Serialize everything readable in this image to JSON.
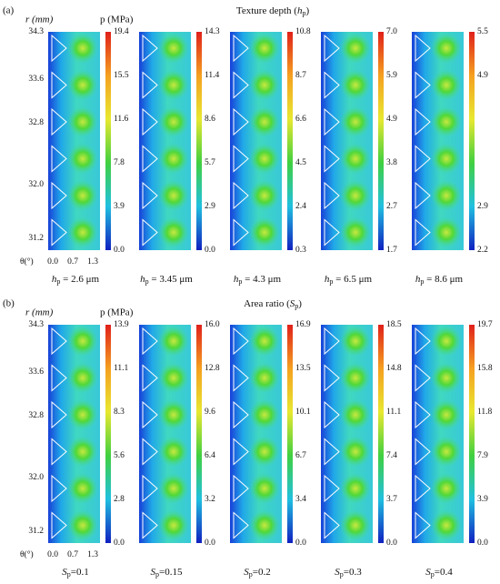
{
  "panels": [
    {
      "label": "(a)",
      "title": {
        "text": "Texture depth (",
        "symbol": "h",
        "sub": "p",
        "end": ")"
      },
      "r_label": "r (mm)",
      "p_label": "p (MPa)",
      "r_ticks": [
        "34.3",
        "33.6",
        "32.8",
        "32.0",
        "31.2"
      ],
      "theta_label": "θ(°)",
      "theta_ticks": [
        "0.0",
        "0.7",
        "1.3"
      ],
      "plots": [
        {
          "caption": {
            "symbol": "h",
            "sub": "p",
            "text": " = 2.6 μm"
          },
          "colorbar": [
            "19.4",
            "15.5",
            "11.6",
            "7.8",
            "3.9",
            "0.0"
          ]
        },
        {
          "caption": {
            "symbol": "h",
            "sub": "p",
            "text": " = 3.45 μm"
          },
          "colorbar": [
            "14.3",
            "11.4",
            "8.6",
            "5.7",
            "2.9",
            "0.0"
          ]
        },
        {
          "caption": {
            "symbol": "h",
            "sub": "p",
            "text": " = 4.3 μm"
          },
          "colorbar": [
            "10.8",
            "8.7",
            "6.6",
            "4.5",
            "2.4",
            "0.3"
          ]
        },
        {
          "caption": {
            "symbol": "h",
            "sub": "p",
            "text": " = 6.5 μm"
          },
          "colorbar": [
            "7.0",
            "5.9",
            "4.9",
            "3.8",
            "2.7",
            "1.7"
          ]
        },
        {
          "caption": {
            "symbol": "h",
            "sub": "p",
            "text": " = 8.6 μm"
          },
          "colorbar": [
            "5.5",
            "4.9",
            null,
            null,
            "2.9",
            "2.2"
          ]
        }
      ]
    },
    {
      "label": "(b)",
      "title": {
        "text": "Area ratio (",
        "symbol": "S",
        "sub": "p",
        "end": ")"
      },
      "r_label": "r (mm)",
      "p_label": "p (MPa)",
      "r_ticks": [
        "34.3",
        "33.6",
        "32.8",
        "32.0",
        "31.2"
      ],
      "theta_label": "θ(°)",
      "theta_ticks": [
        "0.0",
        "0.7",
        "1.3"
      ],
      "plots": [
        {
          "caption": {
            "symbol": "S",
            "sub": "p",
            "text": "=0.1"
          },
          "colorbar": [
            "13.9",
            "11.1",
            "8.3",
            "5.6",
            "2.8",
            "0.0"
          ]
        },
        {
          "caption": {
            "symbol": "S",
            "sub": "p",
            "text": "=0.15"
          },
          "colorbar": [
            "16.0",
            "12.8",
            "9.6",
            "6.4",
            "3.2",
            "0.0"
          ]
        },
        {
          "caption": {
            "symbol": "S",
            "sub": "p",
            "text": "=0.2"
          },
          "colorbar": [
            "16.9",
            "13.5",
            "10.1",
            "6.7",
            "3.4",
            "0.0"
          ]
        },
        {
          "caption": {
            "symbol": "S",
            "sub": "p",
            "text": "=0.3"
          },
          "colorbar": [
            "18.5",
            "14.8",
            "11.1",
            "7.4",
            "3.7",
            "0.0"
          ]
        },
        {
          "caption": {
            "symbol": "S",
            "sub": "p",
            "text": "=0.4"
          },
          "colorbar": [
            "19.7",
            "15.8",
            "11.8",
            "7.9",
            "3.9",
            "0.0"
          ]
        }
      ]
    }
  ]
}
